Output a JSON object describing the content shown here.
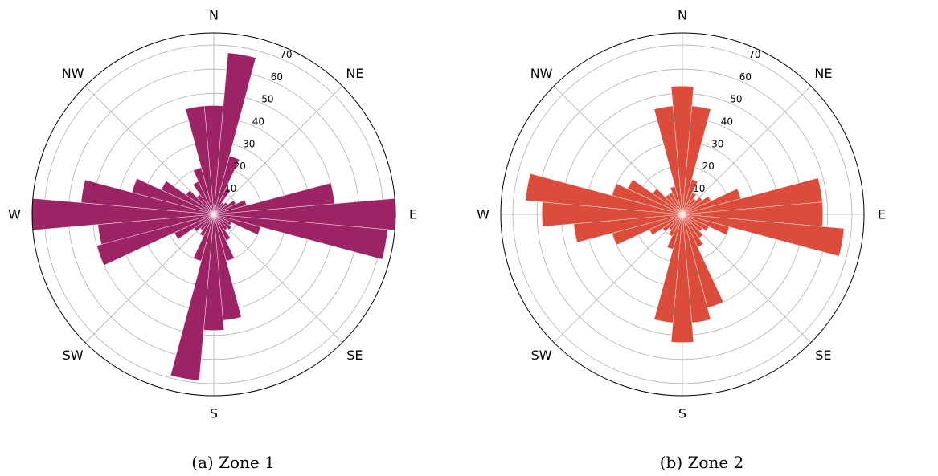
{
  "chart_data": [
    {
      "type": "polar-bar",
      "caption": "(a) Zone 1",
      "color": "#9c2464",
      "direction_labels": [
        "N",
        "NE",
        "E",
        "SE",
        "S",
        "SW",
        "W",
        "NW"
      ],
      "radial_ticks": [
        "10",
        "20",
        "30",
        "40",
        "50",
        "60",
        "70"
      ],
      "rlim": [
        0,
        75
      ],
      "grid": true,
      "bin_width_deg": 10,
      "bin_centers_deg": [
        0,
        10,
        20,
        30,
        40,
        50,
        60,
        70,
        80,
        90,
        100,
        110,
        120,
        130,
        140,
        150,
        160,
        170,
        180,
        190,
        200,
        210,
        220,
        230,
        240,
        250,
        260,
        270,
        280,
        290,
        300,
        310,
        320,
        330,
        340,
        350
      ],
      "values": [
        45,
        67,
        25,
        12,
        6,
        7,
        10,
        14,
        50,
        75,
        72,
        20,
        8,
        9,
        8,
        12,
        20,
        44,
        48,
        69,
        20,
        10,
        8,
        10,
        18,
        50,
        48,
        75,
        55,
        35,
        24,
        14,
        10,
        15,
        20,
        45
      ]
    },
    {
      "type": "polar-bar",
      "caption": "(b) Zone 2",
      "color": "#db4c3a",
      "direction_labels": [
        "N",
        "NE",
        "E",
        "SE",
        "S",
        "SW",
        "W",
        "NW"
      ],
      "radial_ticks": [
        "10",
        "20",
        "30",
        "40",
        "50",
        "60",
        "70"
      ],
      "rlim": [
        0,
        75
      ],
      "grid": true,
      "bin_width_deg": 10,
      "bin_centers_deg": [
        0,
        10,
        20,
        30,
        40,
        50,
        60,
        70,
        80,
        90,
        100,
        110,
        120,
        130,
        140,
        150,
        160,
        170,
        180,
        190,
        200,
        210,
        220,
        230,
        240,
        250,
        260,
        270,
        280,
        290,
        300,
        310,
        320,
        330,
        340,
        350
      ],
      "values": [
        53,
        45,
        15,
        10,
        8,
        10,
        13,
        25,
        58,
        58,
        67,
        20,
        12,
        10,
        12,
        15,
        40,
        45,
        53,
        45,
        15,
        10,
        8,
        10,
        15,
        30,
        45,
        58,
        65,
        30,
        25,
        15,
        10,
        10,
        12,
        45
      ]
    }
  ]
}
